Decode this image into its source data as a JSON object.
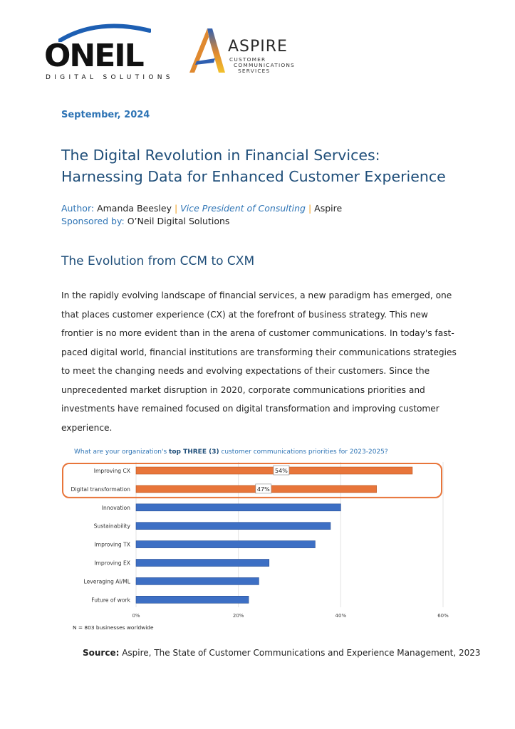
{
  "logos": {
    "oneil": {
      "word": "ONEIL",
      "sub": "DIGITAL SOLUTIONS"
    },
    "aspire": {
      "word": "ASPIRE",
      "sub_lines": [
        "CUSTOMER",
        "COMMUNICATIONS",
        "SERVICES"
      ]
    }
  },
  "date": "September, 2024",
  "title": "The Digital Revolution in Financial Services: Harnessing Data for Enhanced Customer Experience",
  "author": {
    "label": "Author:",
    "name": "Amanda Beesley",
    "separator": "|",
    "role": "Vice President of Consulting",
    "org": "Aspire"
  },
  "sponsor": {
    "label": "Sponsored by:",
    "name": "O’Neil Digital Solutions"
  },
  "section_heading": "The Evolution from CCM to CXM",
  "paragraph": "In the rapidly evolving landscape of financial services, a new paradigm has emerged, one that places customer experience (CX) at the forefront of business strategy.  This new frontier is no more evident than in the arena of customer communications.  In today's fast-paced digital world, financial institutions are transforming their communications strategies to meet the changing needs and evolving expectations of their customers.  Since the unprecedented market disruption in 2020, corporate communications priorities and investments have remained focused on digital transformation and improving customer experience.",
  "chart": {
    "question_pre": "What are your organization's ",
    "question_bold": "top THREE (3)",
    "question_post": " customer communications priorities for 2023-2025?",
    "note": "N = 803 businesses worldwide"
  },
  "chart_data": {
    "type": "bar",
    "orientation": "horizontal",
    "title": "What are your organization's top THREE (3) customer communications priorities for 2023-2025?",
    "categories": [
      "Improving CX",
      "Digital transformation",
      "Innovation",
      "Sustainability",
      "Improving TX",
      "Improving EX",
      "Leveraging AI/ML",
      "Future of work"
    ],
    "values": [
      54,
      47,
      40,
      38,
      35,
      26,
      24,
      22
    ],
    "data_labels": [
      "54%",
      "47%",
      "",
      "",
      "",
      "",
      "",
      ""
    ],
    "highlighted": [
      "Improving CX",
      "Digital transformation"
    ],
    "xlim": [
      0,
      60
    ],
    "x_ticks": [
      0,
      20,
      40,
      60
    ],
    "x_tick_labels": [
      "0%",
      "20%",
      "40%",
      "60%"
    ],
    "grid": true,
    "colors": {
      "highlight": "#e8753a",
      "default": "#3d6fc4",
      "frame": "#e8753a"
    }
  },
  "source": {
    "label": "Source:",
    "text": " Aspire, The State of Customer Communications and Experience Management, 2023"
  }
}
